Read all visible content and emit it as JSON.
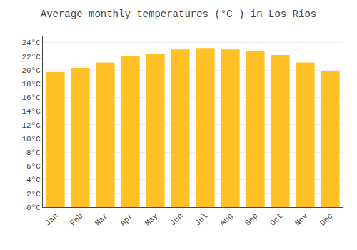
{
  "chart_data": {
    "type": "bar",
    "title": "Average monthly temperatures (°C ) in Los Ríos",
    "categories": [
      "Jan",
      "Feb",
      "Mar",
      "Apr",
      "May",
      "Jun",
      "Jul",
      "Aug",
      "Sep",
      "Oct",
      "Nov",
      "Dec"
    ],
    "values": [
      19.7,
      20.3,
      21.1,
      22.0,
      22.3,
      23.0,
      23.2,
      23.0,
      22.8,
      22.2,
      21.1,
      19.9
    ],
    "color": "#FFC125",
    "ylim": [
      0,
      25
    ],
    "yticks": [
      {
        "value": 0,
        "label": "0°C"
      },
      {
        "value": 2,
        "label": "2°C"
      },
      {
        "value": 4,
        "label": "4°C"
      },
      {
        "value": 6,
        "label": "6°C"
      },
      {
        "value": 8,
        "label": "8°C"
      },
      {
        "value": 10,
        "label": "10°C"
      },
      {
        "value": 12,
        "label": "12°C"
      },
      {
        "value": 14,
        "label": "14°C"
      },
      {
        "value": 16,
        "label": "16°C"
      },
      {
        "value": 18,
        "label": "18°C"
      },
      {
        "value": 20,
        "label": "20°C"
      },
      {
        "value": 22,
        "label": "22°C"
      },
      {
        "value": 24,
        "label": "24°C"
      }
    ],
    "grid": true
  }
}
